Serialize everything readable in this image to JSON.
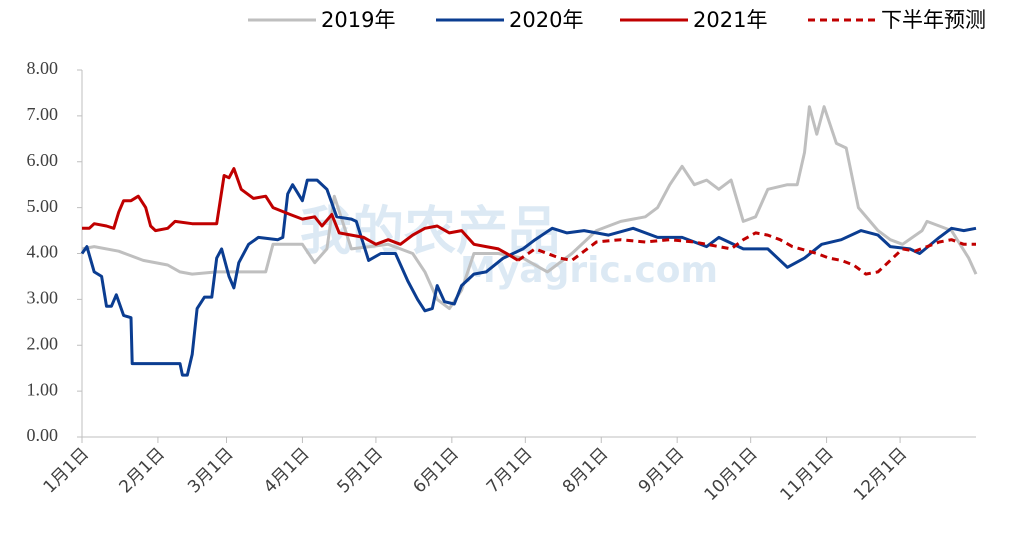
{
  "chart_data": {
    "type": "line",
    "watermark": [
      "我的农产品",
      "Myagric.com"
    ],
    "xlim": [
      0,
      365
    ],
    "xticks": [
      {
        "value": 0,
        "label": "1月1日"
      },
      {
        "value": 31,
        "label": "2月1日"
      },
      {
        "value": 59,
        "label": "3月1日"
      },
      {
        "value": 90,
        "label": "4月1日"
      },
      {
        "value": 120,
        "label": "5月1日"
      },
      {
        "value": 151,
        "label": "6月1日"
      },
      {
        "value": 181,
        "label": "7月1日"
      },
      {
        "value": 212,
        "label": "8月1日"
      },
      {
        "value": 243,
        "label": "9月1日"
      },
      {
        "value": 273,
        "label": "10月1日"
      },
      {
        "value": 304,
        "label": "11月1日"
      },
      {
        "value": 334,
        "label": "12月1日"
      }
    ],
    "ylim": [
      0,
      8
    ],
    "yticks": [
      {
        "value": 0,
        "label": "0.00"
      },
      {
        "value": 1,
        "label": "1.00"
      },
      {
        "value": 2,
        "label": "2.00"
      },
      {
        "value": 3,
        "label": "3.00"
      },
      {
        "value": 4,
        "label": "4.00"
      },
      {
        "value": 5,
        "label": "5.00"
      },
      {
        "value": 6,
        "label": "6.00"
      },
      {
        "value": 7,
        "label": "7.00"
      },
      {
        "value": 8,
        "label": "8.00"
      }
    ],
    "series": [
      {
        "name": "2019年",
        "color": "#bfbfbf",
        "dash": false,
        "x": [
          0,
          5,
          15,
          25,
          35,
          40,
          45,
          55,
          70,
          75,
          78,
          90,
          95,
          100,
          103,
          110,
          125,
          135,
          140,
          145,
          150,
          155,
          160,
          170,
          180,
          190,
          200,
          210,
          220,
          230,
          235,
          240,
          245,
          250,
          255,
          260,
          265,
          270,
          275,
          280,
          288,
          292,
          295,
          297,
          300,
          303,
          308,
          312,
          317,
          325,
          330,
          335,
          343,
          345,
          350,
          355,
          362,
          365
        ],
        "values": [
          4.1,
          4.15,
          4.05,
          3.85,
          3.75,
          3.6,
          3.55,
          3.6,
          3.6,
          3.6,
          4.2,
          4.2,
          3.8,
          4.1,
          5.25,
          4.1,
          4.2,
          4.0,
          3.6,
          3.0,
          2.8,
          3.2,
          4.0,
          4.0,
          3.9,
          3.6,
          4.0,
          4.5,
          4.7,
          4.8,
          5.0,
          5.5,
          5.9,
          5.5,
          5.6,
          5.4,
          5.6,
          4.7,
          4.8,
          5.4,
          5.5,
          5.5,
          6.2,
          7.2,
          6.6,
          7.2,
          6.4,
          6.3,
          5.0,
          4.5,
          4.3,
          4.2,
          4.5,
          4.7,
          4.6,
          4.5,
          3.9,
          3.55
        ]
      },
      {
        "name": "2020年",
        "color": "#0b3d91",
        "dash": false,
        "x": [
          0,
          2,
          5,
          8,
          10,
          12,
          14,
          17,
          20,
          20.5,
          40,
          41,
          43,
          45,
          47,
          50,
          53,
          55,
          57,
          60,
          62,
          64,
          68,
          72,
          80,
          82,
          84,
          86,
          90,
          92,
          96,
          100,
          104,
          110,
          112,
          117,
          122,
          128,
          133,
          137,
          140,
          143,
          145,
          148,
          152,
          155,
          160,
          165,
          172,
          180,
          185,
          192,
          198,
          205,
          215,
          225,
          235,
          245,
          255,
          260,
          270,
          280,
          288,
          295,
          302,
          310,
          318,
          325,
          330,
          338,
          342,
          350,
          355,
          360,
          365
        ],
        "values": [
          4.0,
          4.15,
          3.6,
          3.5,
          2.85,
          2.85,
          3.1,
          2.65,
          2.6,
          1.6,
          1.6,
          1.35,
          1.35,
          1.8,
          2.8,
          3.05,
          3.05,
          3.9,
          4.1,
          3.5,
          3.25,
          3.8,
          4.2,
          4.35,
          4.3,
          4.35,
          5.3,
          5.5,
          5.15,
          5.6,
          5.6,
          5.4,
          4.8,
          4.75,
          4.7,
          3.85,
          4.0,
          4.0,
          3.4,
          3.0,
          2.75,
          2.8,
          3.3,
          2.95,
          2.9,
          3.3,
          3.55,
          3.6,
          3.9,
          4.1,
          4.3,
          4.55,
          4.45,
          4.5,
          4.4,
          4.55,
          4.35,
          4.35,
          4.15,
          4.35,
          4.1,
          4.1,
          3.7,
          3.9,
          4.2,
          4.3,
          4.5,
          4.4,
          4.15,
          4.1,
          4.0,
          4.35,
          4.55,
          4.5,
          4.55
        ]
      },
      {
        "name": "2021年",
        "color": "#c00000",
        "dash": false,
        "x": [
          0,
          3,
          5,
          10,
          13,
          15,
          17,
          20,
          23,
          26,
          28,
          30,
          35,
          38,
          45,
          55,
          58,
          60,
          62,
          65,
          70,
          75,
          78,
          85,
          90,
          95,
          98,
          102,
          105,
          110,
          115,
          120,
          125,
          130,
          135,
          140,
          145,
          150,
          155,
          160,
          165,
          170,
          175,
          178
        ],
        "values": [
          4.55,
          4.55,
          4.65,
          4.6,
          4.55,
          4.9,
          5.15,
          5.15,
          5.25,
          5.0,
          4.6,
          4.5,
          4.55,
          4.7,
          4.65,
          4.65,
          5.7,
          5.65,
          5.85,
          5.4,
          5.2,
          5.25,
          5.0,
          4.85,
          4.75,
          4.8,
          4.6,
          4.85,
          4.45,
          4.4,
          4.35,
          4.2,
          4.3,
          4.2,
          4.4,
          4.55,
          4.6,
          4.45,
          4.5,
          4.2,
          4.15,
          4.1,
          3.95,
          3.85
        ]
      },
      {
        "name": "下半年预测",
        "color": "#c00000",
        "dash": true,
        "x": [
          178,
          185,
          190,
          195,
          200,
          205,
          210,
          220,
          230,
          240,
          250,
          260,
          265,
          270,
          275,
          280,
          285,
          290,
          300,
          305,
          310,
          315,
          320,
          325,
          330,
          335,
          340,
          345,
          350,
          355,
          360,
          365
        ],
        "values": [
          3.85,
          4.1,
          4.0,
          3.9,
          3.85,
          4.05,
          4.25,
          4.3,
          4.25,
          4.3,
          4.25,
          4.15,
          4.1,
          4.3,
          4.45,
          4.4,
          4.3,
          4.15,
          4.0,
          3.9,
          3.85,
          3.75,
          3.55,
          3.6,
          3.85,
          4.1,
          4.05,
          4.15,
          4.25,
          4.3,
          4.2,
          4.2
        ]
      }
    ]
  }
}
